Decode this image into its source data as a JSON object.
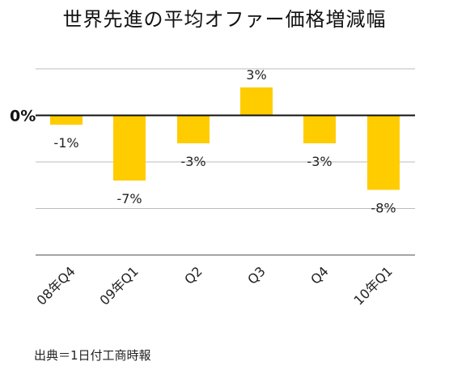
{
  "chart_data": {
    "type": "bar",
    "title": "世界先進の平均オファー価格増減幅",
    "categories": [
      "08年Q4",
      "09年Q1",
      "Q2",
      "Q3",
      "Q4",
      "10年Q1"
    ],
    "values": [
      -1,
      -7,
      -3,
      3,
      -3,
      -8
    ],
    "data_labels": [
      "-1%",
      "-7%",
      "-3%",
      "3%",
      "-3%",
      "-8%"
    ],
    "zero_label": "0%",
    "unit": "%",
    "ylim": [
      -15,
      5
    ],
    "gridlines": [
      5,
      0,
      -5,
      -10,
      -15
    ],
    "grid": true,
    "legend": "none",
    "bar_color": "#FFCC00"
  },
  "source_note": "出典＝1日付工商時報"
}
